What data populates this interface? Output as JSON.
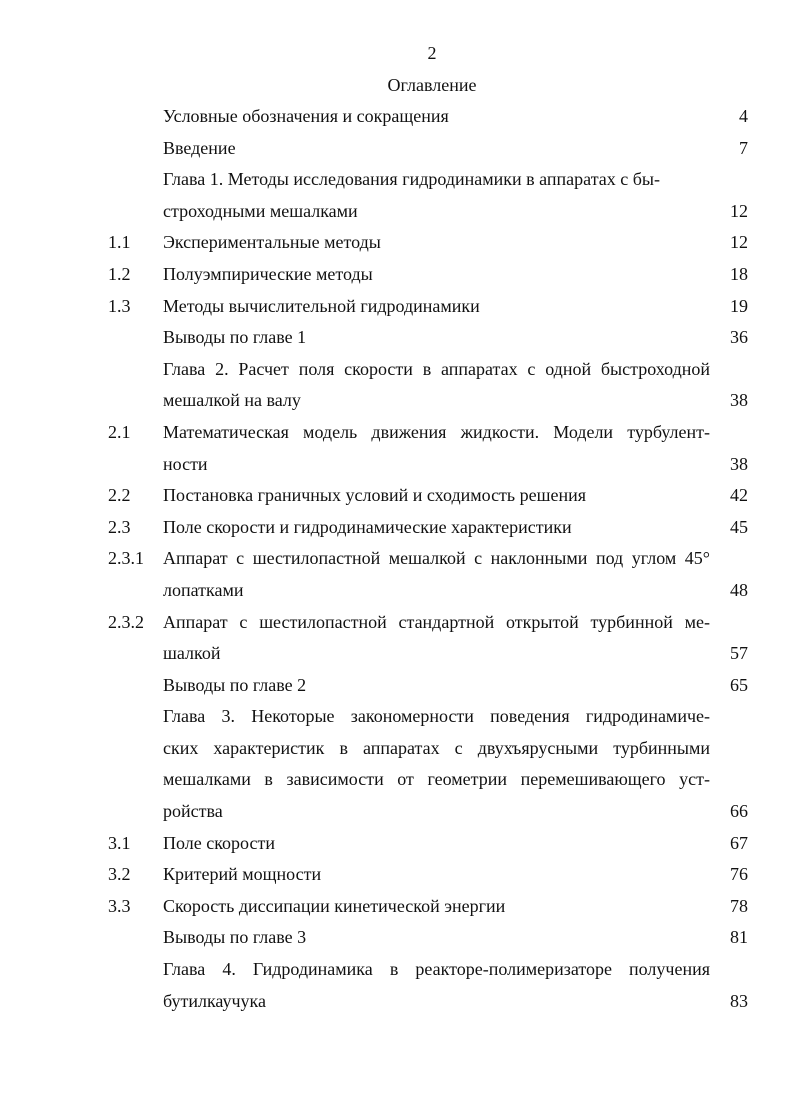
{
  "page_number": "2",
  "title": "Оглавление",
  "entries": [
    {
      "num": "",
      "lines": [
        "Условные обозначения и сокращения"
      ],
      "page": "4"
    },
    {
      "num": "",
      "lines": [
        "Введение"
      ],
      "page": "7"
    },
    {
      "num": "",
      "lines": [
        "Глава 1. Методы исследования гидродинамики в аппаратах с бы-",
        "строходными мешалками"
      ],
      "page": "12"
    },
    {
      "num": "1.1",
      "lines": [
        "Экспериментальные методы"
      ],
      "page": "12"
    },
    {
      "num": "1.2",
      "lines": [
        "Полуэмпирические методы"
      ],
      "page": "18"
    },
    {
      "num": "1.3",
      "lines": [
        "Методы вычислительной гидродинамики"
      ],
      "page": "19"
    },
    {
      "num": "",
      "lines": [
        "Выводы по главе 1"
      ],
      "page": "36"
    },
    {
      "num": "",
      "lines": [
        "Глава 2. Расчет поля скорости в аппаратах с одной быстроходной",
        "мешалкой на валу"
      ],
      "page": "38"
    },
    {
      "num": "2.1",
      "lines": [
        "Математическая модель движения жидкости. Модели турбулент-",
        "ности"
      ],
      "page": "38"
    },
    {
      "num": "2.2",
      "lines": [
        "Постановка граничных условий и сходимость решения"
      ],
      "page": "42"
    },
    {
      "num": "2.3",
      "lines": [
        "Поле скорости и гидродинамические характеристики"
      ],
      "page": "45"
    },
    {
      "num": "2.3.1",
      "lines": [
        "Аппарат с шестилопастной мешалкой с наклонными под углом 45°",
        "лопатками"
      ],
      "page": "48"
    },
    {
      "num": "2.3.2",
      "lines": [
        "Аппарат с шестилопастной стандартной открытой турбинной ме-",
        "шалкой"
      ],
      "page": "57"
    },
    {
      "num": "",
      "lines": [
        "Выводы по главе 2"
      ],
      "page": "65"
    },
    {
      "num": "",
      "lines": [
        "Глава 3. Некоторые закономерности поведения гидродинамиче-",
        "ских характеристик в аппаратах с двухъярусными турбинными",
        "мешалками в зависимости от геометрии перемешивающего уст-",
        "ройства"
      ],
      "page": "66"
    },
    {
      "num": "3.1",
      "lines": [
        "Поле скорости"
      ],
      "page": "67"
    },
    {
      "num": "3.2",
      "lines": [
        "Критерий мощности"
      ],
      "page": "76"
    },
    {
      "num": "3.3",
      "lines": [
        "Скорость диссипации кинетической энергии"
      ],
      "page": "78"
    },
    {
      "num": "",
      "lines": [
        "Выводы по главе 3"
      ],
      "page": "81"
    },
    {
      "num": "",
      "lines": [
        "Глава 4. Гидродинамика в реакторе-полимеризаторе получения",
        "бутилкаучука"
      ],
      "page": "83"
    }
  ]
}
